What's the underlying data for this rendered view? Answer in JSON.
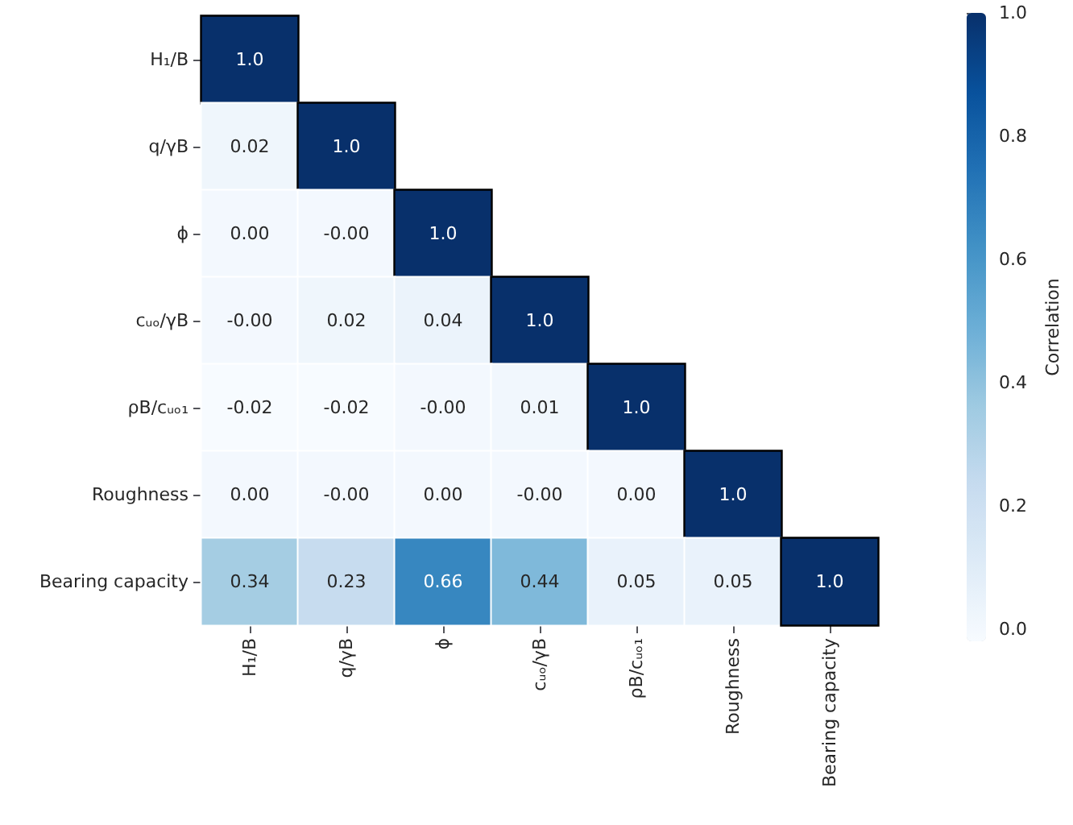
{
  "chart_data": {
    "type": "heatmap",
    "clabel": "Correlation",
    "categories": [
      "H₁/B",
      "q/γB",
      "ϕ",
      "cᵤₒ/γB",
      "ρB/cᵤₒ₁",
      "Roughness",
      "Bearing capacity"
    ],
    "y_categories": [
      "H₁/B",
      "q/γB",
      "ϕ",
      "cᵤₒ/γB",
      "ρB/cᵤₒ₁",
      "Roughness",
      "Bearing capacity"
    ],
    "cells": [
      [
        1.0,
        null,
        null,
        null,
        null,
        null,
        null
      ],
      [
        0.02,
        1.0,
        null,
        null,
        null,
        null,
        null
      ],
      [
        0.0,
        0.0,
        1.0,
        null,
        null,
        null,
        null
      ],
      [
        0.0,
        0.02,
        0.04,
        1.0,
        null,
        null,
        null
      ],
      [
        -0.02,
        -0.02,
        0.0,
        0.01,
        1.0,
        null,
        null
      ],
      [
        0.0,
        0.0,
        0.0,
        0.0,
        0.0,
        1.0,
        null
      ],
      [
        0.34,
        0.23,
        0.66,
        0.44,
        0.05,
        0.05,
        1.0
      ]
    ],
    "cell_labels": [
      [
        "1.0",
        null,
        null,
        null,
        null,
        null,
        null
      ],
      [
        "0.02",
        "1.0",
        null,
        null,
        null,
        null,
        null
      ],
      [
        "0.00",
        "-0.00",
        "1.0",
        null,
        null,
        null,
        null
      ],
      [
        "-0.00",
        "0.02",
        "0.04",
        "1.0",
        null,
        null,
        null
      ],
      [
        "-0.02",
        "-0.02",
        "-0.00",
        "0.01",
        "1.0",
        null,
        null
      ],
      [
        "0.00",
        "-0.00",
        "0.00",
        "-0.00",
        "0.00",
        "1.0",
        null
      ],
      [
        "0.34",
        "0.23",
        "0.66",
        "0.44",
        "0.05",
        "0.05",
        "1.0"
      ]
    ],
    "clim": [
      -0.02,
      1.0
    ],
    "cticks": [
      {
        "value": 0,
        "label": "0.0"
      },
      {
        "value": 0.2,
        "label": "0.2"
      },
      {
        "value": 0.4,
        "label": "0.4"
      },
      {
        "value": 0.6,
        "label": "0.6"
      },
      {
        "value": 0.8,
        "label": "0.8"
      },
      {
        "value": 1.0,
        "label": "1.0"
      }
    ]
  }
}
